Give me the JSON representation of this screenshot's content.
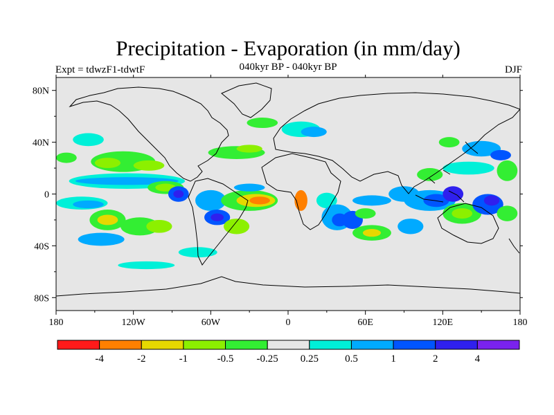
{
  "title": "Precipitation - Evaporation (in mm/day)",
  "subtitle": "040kyr BP - 040kyr BP",
  "experiment_label": "Expt = tdwzF1-tdwtF",
  "season_label": "DJF",
  "map": {
    "projection": "cylindrical equidistant",
    "background_color": "#e6e6e6",
    "lon_range": [
      -180,
      180
    ],
    "lat_range": [
      -90,
      90
    ],
    "x_ticks": [
      {
        "value": -180,
        "label": "180"
      },
      {
        "value": -120,
        "label": "120W"
      },
      {
        "value": -60,
        "label": "60W"
      },
      {
        "value": 0,
        "label": "0"
      },
      {
        "value": 60,
        "label": "60E"
      },
      {
        "value": 120,
        "label": "120E"
      },
      {
        "value": 180,
        "label": "180"
      }
    ],
    "y_ticks": [
      {
        "value": 80,
        "label": "80N"
      },
      {
        "value": 40,
        "label": "40N"
      },
      {
        "value": 0,
        "label": "0"
      },
      {
        "value": -40,
        "label": "40S"
      },
      {
        "value": -80,
        "label": "80S"
      }
    ]
  },
  "colorbar": {
    "colors": [
      "#ff1a1a",
      "#ff8000",
      "#e6d800",
      "#8cf000",
      "#33ee33",
      "#e6e6e6",
      "#00f0d8",
      "#00aaff",
      "#0055ff",
      "#2f20ee",
      "#7a22ee"
    ],
    "labels": [
      "-4",
      "-2",
      "-1",
      "-0.5",
      "-0.25",
      "0.25",
      "0.5",
      "1",
      "2",
      "4"
    ]
  },
  "chart_data": {
    "type": "heatmap",
    "variable": "Precipitation - Evaporation difference (mm/day)",
    "levels": [
      -4,
      -2,
      -1,
      -0.5,
      -0.25,
      0.25,
      0.5,
      1,
      2,
      4
    ],
    "regions": [
      {
        "lon": -128,
        "lat": 25,
        "rx": 25,
        "ry": 8,
        "level": 4
      },
      {
        "lon": -140,
        "lat": 24,
        "rx": 10,
        "ry": 4,
        "level": 3
      },
      {
        "lon": -108,
        "lat": 22,
        "rx": 12,
        "ry": 4,
        "level": 3
      },
      {
        "lon": -155,
        "lat": 42,
        "rx": 12,
        "ry": 5,
        "level": 6
      },
      {
        "lon": -172,
        "lat": 28,
        "rx": 8,
        "ry": 4,
        "level": 4
      },
      {
        "lon": -125,
        "lat": 10,
        "rx": 45,
        "ry": 6,
        "level": 6
      },
      {
        "lon": -125,
        "lat": 10,
        "rx": 40,
        "ry": 3,
        "level": 7
      },
      {
        "lon": -95,
        "lat": 5,
        "rx": 14,
        "ry": 5,
        "level": 4
      },
      {
        "lon": -95,
        "lat": 5,
        "rx": 8,
        "ry": 3,
        "level": 3
      },
      {
        "lon": -160,
        "lat": -7,
        "rx": 20,
        "ry": 5,
        "level": 6
      },
      {
        "lon": -155,
        "lat": -8,
        "rx": 12,
        "ry": 3,
        "level": 7
      },
      {
        "lon": -85,
        "lat": 0,
        "rx": 8,
        "ry": 6,
        "level": 8
      },
      {
        "lon": -85,
        "lat": 0,
        "rx": 4,
        "ry": 3,
        "level": 9
      },
      {
        "lon": -140,
        "lat": -20,
        "rx": 14,
        "ry": 8,
        "level": 4
      },
      {
        "lon": -140,
        "lat": -20,
        "rx": 8,
        "ry": 4,
        "level": 2
      },
      {
        "lon": -115,
        "lat": -25,
        "rx": 15,
        "ry": 7,
        "level": 4
      },
      {
        "lon": -100,
        "lat": -25,
        "rx": 10,
        "ry": 5,
        "level": 3
      },
      {
        "lon": -145,
        "lat": -35,
        "rx": 18,
        "ry": 5,
        "level": 7
      },
      {
        "lon": -70,
        "lat": -45,
        "rx": 15,
        "ry": 4,
        "level": 6
      },
      {
        "lon": -110,
        "lat": -55,
        "rx": 22,
        "ry": 3,
        "level": 6
      },
      {
        "lon": -60,
        "lat": -5,
        "rx": 12,
        "ry": 8,
        "level": 7
      },
      {
        "lon": -55,
        "lat": -18,
        "rx": 10,
        "ry": 6,
        "level": 8
      },
      {
        "lon": -55,
        "lat": -18,
        "rx": 5,
        "ry": 3,
        "level": 9
      },
      {
        "lon": -30,
        "lat": -5,
        "rx": 22,
        "ry": 8,
        "level": 4
      },
      {
        "lon": -25,
        "lat": -5,
        "rx": 15,
        "ry": 5,
        "level": 2
      },
      {
        "lon": -22,
        "lat": -5,
        "rx": 8,
        "ry": 3,
        "level": 1
      },
      {
        "lon": -40,
        "lat": -25,
        "rx": 10,
        "ry": 6,
        "level": 3
      },
      {
        "lon": -30,
        "lat": 5,
        "rx": 12,
        "ry": 3,
        "level": 7
      },
      {
        "lon": -40,
        "lat": 32,
        "rx": 22,
        "ry": 5,
        "level": 4
      },
      {
        "lon": -30,
        "lat": 35,
        "rx": 10,
        "ry": 3,
        "level": 3
      },
      {
        "lon": -20,
        "lat": 55,
        "rx": 12,
        "ry": 4,
        "level": 4
      },
      {
        "lon": 10,
        "lat": 50,
        "rx": 15,
        "ry": 6,
        "level": 6
      },
      {
        "lon": 20,
        "lat": 48,
        "rx": 10,
        "ry": 4,
        "level": 7
      },
      {
        "lon": 10,
        "lat": -5,
        "rx": 5,
        "ry": 8,
        "level": 1
      },
      {
        "lon": 30,
        "lat": -5,
        "rx": 8,
        "ry": 6,
        "level": 6
      },
      {
        "lon": 38,
        "lat": -18,
        "rx": 12,
        "ry": 10,
        "level": 7
      },
      {
        "lon": 40,
        "lat": -20,
        "rx": 6,
        "ry": 5,
        "level": 8
      },
      {
        "lon": 50,
        "lat": -20,
        "rx": 8,
        "ry": 7,
        "level": 8
      },
      {
        "lon": 65,
        "lat": -5,
        "rx": 15,
        "ry": 4,
        "level": 7
      },
      {
        "lon": 60,
        "lat": -15,
        "rx": 8,
        "ry": 4,
        "level": 4
      },
      {
        "lon": 65,
        "lat": -30,
        "rx": 15,
        "ry": 6,
        "level": 4
      },
      {
        "lon": 65,
        "lat": -30,
        "rx": 7,
        "ry": 3,
        "level": 2
      },
      {
        "lon": 95,
        "lat": -25,
        "rx": 10,
        "ry": 6,
        "level": 7
      },
      {
        "lon": 90,
        "lat": 0,
        "rx": 12,
        "ry": 6,
        "level": 7
      },
      {
        "lon": 110,
        "lat": -5,
        "rx": 20,
        "ry": 8,
        "level": 7
      },
      {
        "lon": 115,
        "lat": -5,
        "rx": 10,
        "ry": 5,
        "level": 8
      },
      {
        "lon": 128,
        "lat": 0,
        "rx": 8,
        "ry": 6,
        "level": 9
      },
      {
        "lon": 135,
        "lat": -15,
        "rx": 15,
        "ry": 8,
        "level": 4
      },
      {
        "lon": 135,
        "lat": -15,
        "rx": 8,
        "ry": 4,
        "level": 3
      },
      {
        "lon": 155,
        "lat": -8,
        "rx": 12,
        "ry": 8,
        "level": 8
      },
      {
        "lon": 158,
        "lat": -5,
        "rx": 6,
        "ry": 4,
        "level": 9
      },
      {
        "lon": 110,
        "lat": 15,
        "rx": 10,
        "ry": 5,
        "level": 4
      },
      {
        "lon": 140,
        "lat": 20,
        "rx": 20,
        "ry": 5,
        "level": 6
      },
      {
        "lon": 150,
        "lat": 35,
        "rx": 15,
        "ry": 6,
        "level": 7
      },
      {
        "lon": 165,
        "lat": 30,
        "rx": 8,
        "ry": 4,
        "level": 8
      },
      {
        "lon": 170,
        "lat": 18,
        "rx": 8,
        "ry": 8,
        "level": 4
      },
      {
        "lon": 125,
        "lat": 40,
        "rx": 8,
        "ry": 4,
        "level": 4
      },
      {
        "lon": 170,
        "lat": -15,
        "rx": 8,
        "ry": 6,
        "level": 4
      }
    ]
  }
}
